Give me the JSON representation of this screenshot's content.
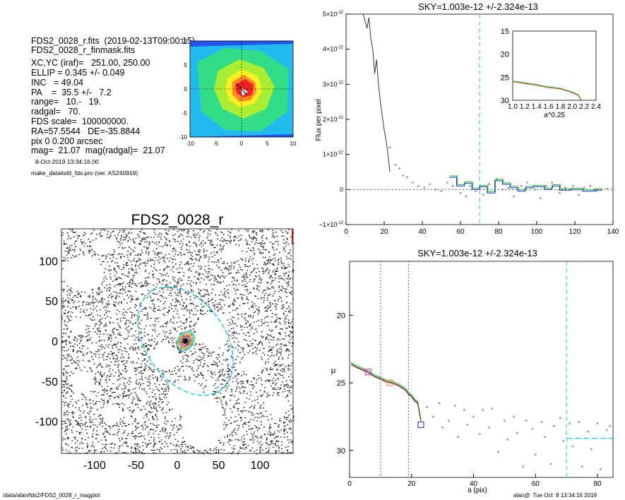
{
  "info": {
    "lines": [
      "FDS2_0028_r.fits  (2019-02-13T09:00:15)",
      "FDS2_0028_r_finmask.fits",
      "",
      "XC,YC (iraf)=   251.00, 250.00",
      "ELLIP = 0.345 +/- 0.049",
      "INC   = 49.04",
      "PA    =  35.5 +/-   7.2",
      "range=   10.-   19.",
      "radgal=   70.",
      "FDS scale=  100000000.",
      "RA=57.5544   DE=-35.8844",
      "pix 0 0.200 arcsec",
      "mag=  21.07  mag(radgal)=  21.07"
    ],
    "date_line": "8-Oct-2019 13:34:16.00",
    "program_line": "make_datalist0_fds.pro (ver. AS240919)"
  },
  "footer": {
    "left": "/data/alan/fds2/FDS2_0028_r_magplot",
    "right": "alan@  Tue Oct  8 13:34:16 2019"
  },
  "colors": {
    "cyan": "#22ccdd",
    "gray": "#999999",
    "green": "#22bb22",
    "blue": "#1133dd",
    "red": "#dd2222",
    "magenta": "#cc22cc",
    "orange": "#ee8833"
  },
  "chart_data": [
    {
      "type": "heatmap",
      "description_role": "contour-map",
      "xlim": [
        -10,
        10
      ],
      "ylim": [
        -10,
        10
      ],
      "xticks": [
        "-10",
        "-5",
        "0",
        "5",
        "10"
      ],
      "yticks": [
        "-10",
        "-5",
        "0",
        "5",
        "10"
      ]
    },
    {
      "type": "line",
      "title": "SKY=1.003e-12 +/-2.324e-13",
      "xlabel": "",
      "ylabel": "Flux per pixel",
      "xlim": [
        0,
        140
      ],
      "ylim": [
        -1e-12,
        5e-12
      ],
      "xticks": [
        "0",
        "20",
        "40",
        "60",
        "80",
        "100",
        "120",
        "140"
      ],
      "yticks": [
        {
          "v": 5,
          "t": "5×10"
        },
        {
          "v": 4,
          "t": "4×10"
        },
        {
          "v": 3,
          "t": "3×10"
        },
        {
          "v": 2,
          "t": "2×10"
        },
        {
          "v": 1,
          "t": "1×10"
        },
        {
          "v": 0,
          "t": "0"
        },
        {
          "v": -1,
          "t": "−1×10"
        }
      ],
      "ytick_exp": "-12",
      "vline_x": 70,
      "profile": [
        [
          9,
          5.0
        ],
        [
          11,
          4.6
        ],
        [
          12,
          4.9
        ],
        [
          13,
          4.3
        ],
        [
          14,
          4.0
        ],
        [
          15,
          3.3
        ],
        [
          16,
          3.7
        ],
        [
          17,
          3.0
        ],
        [
          18,
          2.5
        ],
        [
          19,
          2.1
        ],
        [
          20,
          1.7
        ],
        [
          21,
          1.4
        ],
        [
          22,
          1.0
        ],
        [
          23,
          0.5
        ]
      ],
      "step": [
        [
          54,
          0.35
        ],
        [
          58,
          0.1
        ],
        [
          62,
          0.18
        ],
        [
          66,
          0.0
        ],
        [
          70,
          0.08
        ],
        [
          74,
          -0.1
        ],
        [
          78,
          0.25
        ],
        [
          82,
          0.15
        ],
        [
          86,
          0.05
        ],
        [
          90,
          -0.05
        ],
        [
          94,
          0.05
        ],
        [
          98,
          0.08
        ],
        [
          104,
          0.0
        ],
        [
          108,
          0.1
        ],
        [
          112,
          -0.02
        ],
        [
          118,
          0.0
        ],
        [
          124,
          -0.05
        ],
        [
          130,
          -0.02
        ]
      ],
      "scatter": [
        [
          23,
          1.2
        ],
        [
          26,
          0.7
        ],
        [
          28,
          0.6
        ],
        [
          30,
          0.4
        ],
        [
          32,
          0.35
        ],
        [
          35,
          0.2
        ],
        [
          38,
          0.1
        ],
        [
          41,
          0.05
        ],
        [
          44,
          0.15
        ],
        [
          47,
          0.0
        ],
        [
          50,
          -0.05
        ],
        [
          53,
          0.2
        ],
        [
          56,
          0.1
        ],
        [
          60,
          -0.1
        ],
        [
          63,
          -0.2
        ],
        [
          65,
          0.1
        ],
        [
          68,
          -0.05
        ],
        [
          72,
          -0.15
        ],
        [
          75,
          0.15
        ],
        [
          79,
          0.3
        ],
        [
          82,
          0.0
        ],
        [
          85,
          0.05
        ],
        [
          88,
          -0.2
        ],
        [
          92,
          0.1
        ],
        [
          95,
          0.2
        ],
        [
          99,
          0.0
        ],
        [
          102,
          -0.25
        ],
        [
          105,
          0.1
        ],
        [
          108,
          0.2
        ],
        [
          112,
          -0.1
        ],
        [
          115,
          0.05
        ],
        [
          119,
          0.1
        ],
        [
          122,
          -0.15
        ],
        [
          125,
          0.05
        ],
        [
          128,
          0.1
        ],
        [
          131,
          -0.05
        ],
        [
          134,
          0.0
        ],
        [
          137,
          0.02
        ]
      ],
      "inset": {
        "xlabel": "a^0.25",
        "xlim": [
          1.0,
          2.4
        ],
        "ylim": [
          15,
          30
        ],
        "xticks": [
          "1.0",
          "1.2",
          "1.4",
          "1.6",
          "1.8",
          "2.0",
          "2.2",
          "2.4"
        ],
        "yticks": [
          "15",
          "20",
          "25",
          "30"
        ],
        "curve": [
          [
            1.0,
            25.8
          ],
          [
            1.2,
            26.2
          ],
          [
            1.4,
            26.6
          ],
          [
            1.6,
            27.1
          ],
          [
            1.8,
            27.4
          ],
          [
            1.9,
            27.8
          ],
          [
            2.0,
            28.2
          ],
          [
            2.1,
            28.8
          ],
          [
            2.15,
            29.9
          ]
        ]
      }
    },
    {
      "type": "line",
      "title": "SKY=1.003e-12 +/-2.324e-13",
      "xlabel": "a (pix)",
      "ylabel": "μ",
      "xlim": [
        0,
        85
      ],
      "ylim": [
        32,
        16
      ],
      "xticks": [
        "0",
        "20",
        "40",
        "60",
        "80"
      ],
      "yticks": [
        "20",
        "25",
        "30"
      ],
      "vlines_dotted": [
        10,
        19
      ],
      "vline_dashed": 70,
      "hline_dashed": {
        "x0": 70,
        "x1": 85,
        "y": 29.1
      },
      "profile": [
        [
          0.5,
          23.6
        ],
        [
          2,
          23.8
        ],
        [
          4,
          24.0
        ],
        [
          6,
          24.2
        ],
        [
          8,
          24.5
        ],
        [
          10,
          24.7
        ],
        [
          12,
          24.9
        ],
        [
          14,
          25.0
        ],
        [
          16,
          25.2
        ],
        [
          18,
          25.5
        ],
        [
          19,
          25.8
        ],
        [
          20,
          26.0
        ],
        [
          21,
          26.3
        ],
        [
          22,
          26.5
        ],
        [
          23,
          27.8
        ]
      ],
      "boxes": [
        [
          6,
          24.2,
          "#cc22cc"
        ],
        [
          13,
          25.0,
          "#ee8833"
        ],
        [
          23,
          28.1,
          "#1133dd"
        ]
      ],
      "scatter": [
        [
          25,
          26.8
        ],
        [
          27,
          27.5
        ],
        [
          29,
          26.5
        ],
        [
          30,
          28.3
        ],
        [
          32,
          27.8
        ],
        [
          34,
          26.7
        ],
        [
          35,
          29.0
        ],
        [
          37,
          27.0
        ],
        [
          38,
          28.1
        ],
        [
          40,
          27.5
        ],
        [
          42,
          28.8
        ],
        [
          43,
          27.0
        ],
        [
          45,
          28.3
        ],
        [
          46,
          26.9
        ],
        [
          48,
          30.1
        ],
        [
          50,
          27.8
        ],
        [
          51,
          29.2
        ],
        [
          53,
          27.5
        ],
        [
          54,
          28.7
        ],
        [
          56,
          31.2
        ],
        [
          57,
          27.8
        ],
        [
          59,
          28.4
        ],
        [
          60,
          30.3
        ],
        [
          62,
          27.9
        ],
        [
          63,
          29.0
        ],
        [
          65,
          31.0
        ],
        [
          66,
          28.2
        ],
        [
          68,
          27.6
        ],
        [
          69,
          29.3
        ],
        [
          71,
          28.0
        ],
        [
          72,
          29.7
        ],
        [
          74,
          27.9
        ],
        [
          75,
          31.2
        ],
        [
          77,
          28.6
        ],
        [
          78,
          29.9
        ],
        [
          80,
          28.0
        ],
        [
          81,
          31.4
        ],
        [
          83,
          28.5
        ],
        [
          84,
          28.2
        ]
      ]
    },
    {
      "type": "scatter",
      "title": "FDS2_0028_r",
      "xlim": [
        -140,
        140
      ],
      "ylim": [
        -140,
        140
      ],
      "xticks": [
        "-100",
        "-50",
        "0",
        "50",
        "100"
      ],
      "yticks": [
        "100",
        "50",
        "0",
        "-50",
        "-100"
      ],
      "ellipse": {
        "cx": 10,
        "cy": 0,
        "a": 70,
        "ellip": 0.345,
        "pa": 35.5
      }
    }
  ]
}
